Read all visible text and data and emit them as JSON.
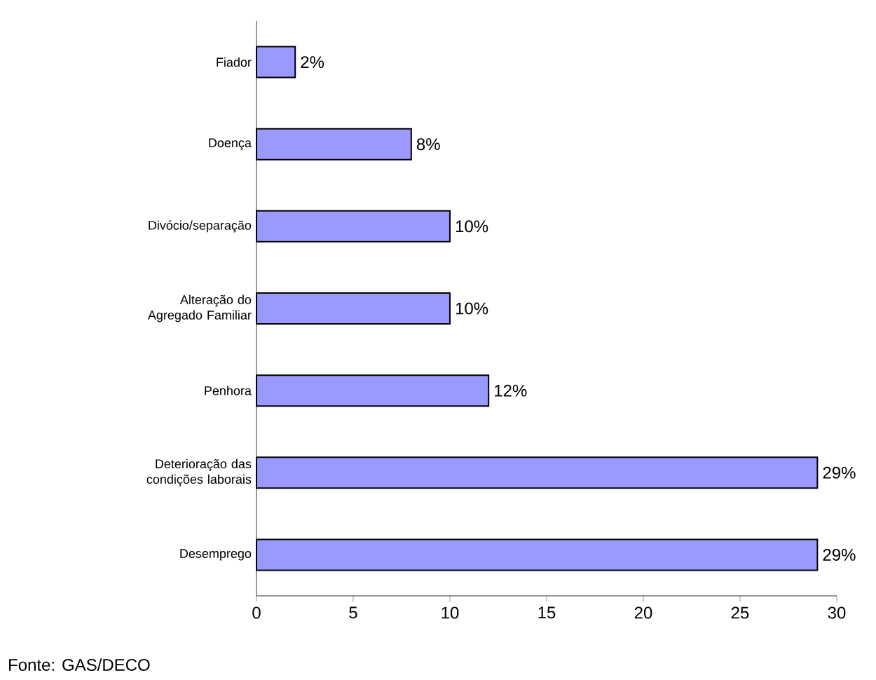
{
  "chart_data": {
    "type": "bar",
    "orientation": "horizontal",
    "categories": [
      "Fiador",
      "Doença",
      "Divócio/separação",
      "Alteração do Agregado Familiar",
      "Penhora",
      "Deterioração das condições laborais",
      "Desemprego"
    ],
    "values": [
      2,
      8,
      10,
      10,
      12,
      29,
      29
    ],
    "value_labels": [
      "2%",
      "8%",
      "10%",
      "10%",
      "12%",
      "29%",
      "29%"
    ],
    "color": "#9999ff",
    "xlim": [
      0,
      30
    ],
    "xticks": [
      0,
      5,
      10,
      15,
      20,
      25,
      30
    ],
    "annotations": [
      "Fonte: GAS/DECO"
    ]
  }
}
